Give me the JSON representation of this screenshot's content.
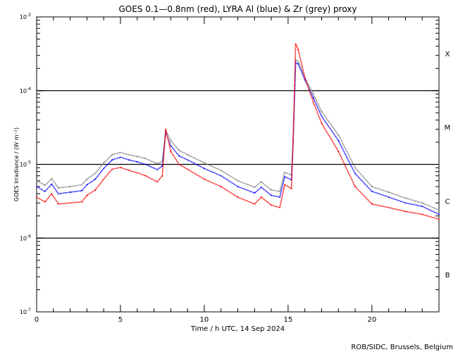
{
  "chart_data": {
    "type": "line",
    "title": "GOES 0.1—0.8nm (red), LYRA Al (blue) & Zr (grey) proxy",
    "xlabel": "Time / h UTC, 14 Sep 2024",
    "ylabel": "GOES Irradiance / (W m⁻²)",
    "xlim": [
      0,
      24
    ],
    "ylim": [
      1e-07,
      0.001
    ],
    "yscale": "log",
    "x_ticks": [
      0,
      5,
      10,
      15,
      20
    ],
    "y_ticks": [
      {
        "base": "10",
        "exp": "-3",
        "value": 0.001
      },
      {
        "base": "10",
        "exp": "-4",
        "value": 0.0001
      },
      {
        "base": "10",
        "exp": "-5",
        "value": 1e-05
      },
      {
        "base": "10",
        "exp": "-6",
        "value": 1e-06
      },
      {
        "base": "10",
        "exp": "-7",
        "value": 1e-07
      }
    ],
    "hlines": [
      0.0001,
      1e-05,
      1e-06
    ],
    "class_labels": [
      {
        "label": "X",
        "value": 0.00032
      },
      {
        "label": "M",
        "value": 3.2e-05
      },
      {
        "label": "C",
        "value": 3.2e-06
      },
      {
        "label": "B",
        "value": 3.2e-07
      }
    ],
    "x": [
      0,
      0.5,
      0.9,
      1.3,
      2,
      2.7,
      3,
      3.5,
      4,
      4.5,
      5,
      5.5,
      6,
      6.5,
      7.2,
      7.5,
      7.7,
      8,
      8.5,
      9,
      10,
      11,
      12,
      13,
      13.4,
      14,
      14.5,
      14.8,
      15.2,
      15.3,
      15.45,
      15.6,
      16,
      16.5,
      17,
      18,
      19,
      20,
      21,
      22,
      23,
      24
    ],
    "series": [
      {
        "name": "GOES 0.1-0.8nm",
        "color": "#ff0000",
        "values": [
          3.6e-06,
          3.1e-06,
          4e-06,
          2.9e-06,
          3e-06,
          3.1e-06,
          3.8e-06,
          4.5e-06,
          6.3e-06,
          8.6e-06,
          9.1e-06,
          8.3e-06,
          7.7e-06,
          7e-06,
          5.8e-06,
          7e-06,
          3e-05,
          1.5e-05,
          1e-05,
          8.6e-06,
          6.3e-06,
          5e-06,
          3.6e-06,
          2.9e-06,
          3.6e-06,
          2.8e-06,
          2.6e-06,
          5.3e-06,
          4.7e-06,
          2e-05,
          0.00043,
          0.00036,
          0.00015,
          7e-05,
          3.6e-05,
          1.5e-05,
          5e-06,
          2.9e-06,
          2.6e-06,
          2.3e-06,
          2.1e-06,
          1.8e-06
        ]
      },
      {
        "name": "LYRA Al proxy",
        "color": "#0000ff",
        "values": [
          5e-06,
          4.3e-06,
          5.4e-06,
          4e-06,
          4.2e-06,
          4.4e-06,
          5.3e-06,
          6.3e-06,
          8.8e-06,
          1.15e-05,
          1.25e-05,
          1.15e-05,
          1.08e-05,
          1e-05,
          8.5e-06,
          9.5e-06,
          2.7e-05,
          1.8e-05,
          1.3e-05,
          1.15e-05,
          8.8e-06,
          7e-06,
          5e-06,
          4.1e-06,
          4.9e-06,
          3.8e-06,
          3.6e-06,
          6.8e-06,
          6.2e-06,
          2e-05,
          0.00024,
          0.00023,
          0.00014,
          8e-05,
          4.5e-05,
          2.1e-05,
          7.5e-06,
          4.3e-06,
          3.6e-06,
          3e-06,
          2.7e-06,
          2.1e-06
        ]
      },
      {
        "name": "LYRA Zr proxy",
        "color": "#808080",
        "values": [
          6e-06,
          5.2e-06,
          6.4e-06,
          4.8e-06,
          5e-06,
          5.3e-06,
          6.3e-06,
          7.6e-06,
          1.05e-05,
          1.35e-05,
          1.45e-05,
          1.35e-05,
          1.28e-05,
          1.2e-05,
          1.02e-05,
          1.1e-05,
          2.9e-05,
          2.1e-05,
          1.55e-05,
          1.35e-05,
          1.05e-05,
          8.3e-06,
          6e-06,
          4.9e-06,
          5.8e-06,
          4.5e-06,
          4.3e-06,
          7.8e-06,
          7.2e-06,
          2.2e-05,
          0.00026,
          0.00025,
          0.00015,
          9e-05,
          5.2e-05,
          2.5e-05,
          9e-06,
          5e-06,
          4.2e-06,
          3.5e-06,
          3e-06,
          2.4e-06
        ]
      }
    ]
  },
  "footer": "ROB/SIDC, Brussels, Belgium"
}
